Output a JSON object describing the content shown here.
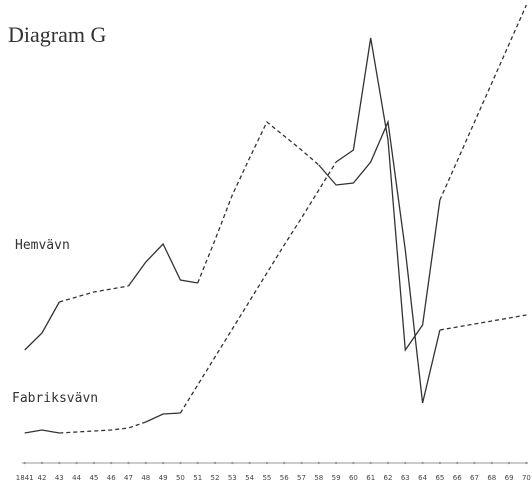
{
  "chart_data": {
    "type": "line",
    "title": "Diagram G",
    "categories": [
      "1841",
      "42",
      "43",
      "44",
      "45",
      "46",
      "47",
      "48",
      "49",
      "50",
      "51",
      "52",
      "53",
      "54",
      "55",
      "56",
      "57",
      "58",
      "59",
      "60",
      "61",
      "62",
      "63",
      "64",
      "65",
      "66",
      "67",
      "68",
      "69",
      "70"
    ],
    "ylim": [
      0,
      470
    ],
    "series": [
      {
        "name": "Hemvävn",
        "color": "#333333",
        "values": [
          113,
          130,
          161,
          166,
          171,
          174,
          177,
          201,
          219,
          183,
          180,
          223,
          268,
          305,
          341,
          327,
          313,
          298,
          278,
          280,
          301,
          341,
          213,
          60,
          133,
          136,
          139,
          142,
          145,
          148
        ],
        "dashed_segments": [
          [
            2,
            6
          ],
          [
            10,
            17
          ],
          [
            24,
            29
          ]
        ]
      },
      {
        "name": "Fabriksvävn",
        "color": "#333333",
        "values": [
          30,
          33,
          30,
          31,
          32,
          33,
          35,
          41,
          49,
          50,
          78,
          106,
          134,
          162,
          190,
          218,
          245,
          273,
          301,
          313,
          425,
          323,
          113,
          138,
          263,
          302,
          341,
          380,
          419,
          458
        ],
        "dashed_segments": [
          [
            2,
            7
          ],
          [
            9,
            18
          ],
          [
            24,
            29
          ]
        ]
      }
    ]
  }
}
